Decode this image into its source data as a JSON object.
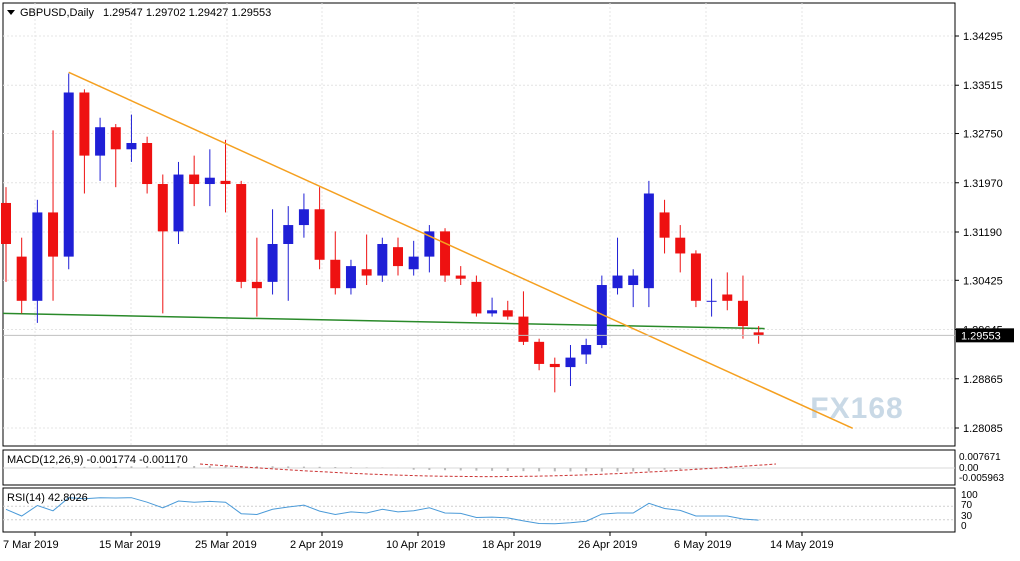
{
  "header": {
    "symbol": "GBPUSD,Daily",
    "ohlc": "1.29547 1.29702 1.29427 1.29553"
  },
  "watermark": "FX168",
  "colors": {
    "bull": "#1f1fd6",
    "bear": "#ee1111",
    "ma": "#2a8a2a",
    "trendline": "#f5a020",
    "grid": "#e4e4e4",
    "macd_signal": "#cc3333",
    "rsi": "#4a9ad8",
    "price_tag_bg": "#000000"
  },
  "main_panel": {
    "price_labels": [
      "1.34295",
      "1.33515",
      "1.32750",
      "1.31970",
      "1.31190",
      "1.30425",
      "1.29645",
      "1.28865",
      "1.28085"
    ],
    "price_values": [
      1.34295,
      1.33515,
      1.3275,
      1.3197,
      1.3119,
      1.30425,
      1.29645,
      1.28865,
      1.28085
    ],
    "current_price_label": "1.29553",
    "current_price": 1.29553
  },
  "macd_panel": {
    "label": "MACD(12,26,9) -0.001774 -0.001170",
    "scale_labels": [
      "0.007671",
      "0.00",
      "-0.005963"
    ]
  },
  "rsi_panel": {
    "label": "RSI(14) 42.8026",
    "scale_labels": [
      "100",
      "70",
      "30",
      "0"
    ]
  },
  "time_axis": {
    "labels": [
      "7 Mar 2019",
      "15 Mar 2019",
      "25 Mar 2019",
      "2 Apr 2019",
      "10 Apr 2019",
      "18 Apr 2019",
      "26 Apr 2019",
      "6 May 2019",
      "14 May 2019"
    ]
  },
  "chart_data": {
    "type": "candlestick",
    "symbol": "GBPUSD",
    "timeframe": "Daily",
    "candles": [
      {
        "o": 1.3165,
        "h": 1.319,
        "l": 1.304,
        "c": 1.31
      },
      {
        "o": 1.308,
        "h": 1.311,
        "l": 1.299,
        "c": 1.301
      },
      {
        "o": 1.301,
        "h": 1.317,
        "l": 1.2975,
        "c": 1.315
      },
      {
        "o": 1.315,
        "h": 1.328,
        "l": 1.301,
        "c": 1.308
      },
      {
        "o": 1.308,
        "h": 1.337,
        "l": 1.306,
        "c": 1.334
      },
      {
        "o": 1.334,
        "h": 1.3345,
        "l": 1.318,
        "c": 1.324
      },
      {
        "o": 1.324,
        "h": 1.33,
        "l": 1.32,
        "c": 1.3285
      },
      {
        "o": 1.3285,
        "h": 1.329,
        "l": 1.319,
        "c": 1.325
      },
      {
        "o": 1.325,
        "h": 1.3305,
        "l": 1.323,
        "c": 1.326
      },
      {
        "o": 1.326,
        "h": 1.327,
        "l": 1.318,
        "c": 1.3195
      },
      {
        "o": 1.3195,
        "h": 1.321,
        "l": 1.299,
        "c": 1.312
      },
      {
        "o": 1.312,
        "h": 1.323,
        "l": 1.31,
        "c": 1.321
      },
      {
        "o": 1.321,
        "h": 1.324,
        "l": 1.316,
        "c": 1.3195
      },
      {
        "o": 1.3195,
        "h": 1.325,
        "l": 1.316,
        "c": 1.3205
      },
      {
        "o": 1.32,
        "h": 1.3265,
        "l": 1.315,
        "c": 1.3195
      },
      {
        "o": 1.3195,
        "h": 1.32,
        "l": 1.303,
        "c": 1.304
      },
      {
        "o": 1.304,
        "h": 1.311,
        "l": 1.2985,
        "c": 1.303
      },
      {
        "o": 1.304,
        "h": 1.3155,
        "l": 1.302,
        "c": 1.31
      },
      {
        "o": 1.31,
        "h": 1.316,
        "l": 1.301,
        "c": 1.313
      },
      {
        "o": 1.313,
        "h": 1.318,
        "l": 1.311,
        "c": 1.3155
      },
      {
        "o": 1.3155,
        "h": 1.319,
        "l": 1.306,
        "c": 1.3075
      },
      {
        "o": 1.3075,
        "h": 1.312,
        "l": 1.302,
        "c": 1.303
      },
      {
        "o": 1.303,
        "h": 1.3075,
        "l": 1.302,
        "c": 1.3065
      },
      {
        "o": 1.306,
        "h": 1.3115,
        "l": 1.3035,
        "c": 1.305
      },
      {
        "o": 1.305,
        "h": 1.311,
        "l": 1.304,
        "c": 1.31
      },
      {
        "o": 1.3095,
        "h": 1.311,
        "l": 1.305,
        "c": 1.3065
      },
      {
        "o": 1.306,
        "h": 1.3105,
        "l": 1.305,
        "c": 1.308
      },
      {
        "o": 1.308,
        "h": 1.313,
        "l": 1.3055,
        "c": 1.312
      },
      {
        "o": 1.312,
        "h": 1.3125,
        "l": 1.304,
        "c": 1.305
      },
      {
        "o": 1.305,
        "h": 1.3065,
        "l": 1.3035,
        "c": 1.3045
      },
      {
        "o": 1.304,
        "h": 1.305,
        "l": 1.2985,
        "c": 1.299
      },
      {
        "o": 1.299,
        "h": 1.3015,
        "l": 1.2985,
        "c": 1.2995
      },
      {
        "o": 1.2995,
        "h": 1.301,
        "l": 1.298,
        "c": 1.2985
      },
      {
        "o": 1.2985,
        "h": 1.3025,
        "l": 1.294,
        "c": 1.2945
      },
      {
        "o": 1.2945,
        "h": 1.295,
        "l": 1.29,
        "c": 1.291
      },
      {
        "o": 1.291,
        "h": 1.292,
        "l": 1.2865,
        "c": 1.2905
      },
      {
        "o": 1.2905,
        "h": 1.294,
        "l": 1.2875,
        "c": 1.292
      },
      {
        "o": 1.2925,
        "h": 1.295,
        "l": 1.291,
        "c": 1.294
      },
      {
        "o": 1.294,
        "h": 1.305,
        "l": 1.2935,
        "c": 1.3035
      },
      {
        "o": 1.303,
        "h": 1.311,
        "l": 1.302,
        "c": 1.305
      },
      {
        "o": 1.3035,
        "h": 1.306,
        "l": 1.3,
        "c": 1.305
      },
      {
        "o": 1.303,
        "h": 1.32,
        "l": 1.3,
        "c": 1.318
      },
      {
        "o": 1.315,
        "h": 1.317,
        "l": 1.3085,
        "c": 1.311
      },
      {
        "o": 1.311,
        "h": 1.313,
        "l": 1.3055,
        "c": 1.3085
      },
      {
        "o": 1.3085,
        "h": 1.309,
        "l": 1.3,
        "c": 1.301
      },
      {
        "o": 1.301,
        "h": 1.3045,
        "l": 1.2985,
        "c": 1.301
      },
      {
        "o": 1.302,
        "h": 1.3055,
        "l": 1.2995,
        "c": 1.301
      },
      {
        "o": 1.301,
        "h": 1.305,
        "l": 1.295,
        "c": 1.297
      },
      {
        "o": 1.296,
        "h": 1.297,
        "l": 1.2942,
        "c": 1.2955
      }
    ],
    "moving_average": {
      "start": 1.299,
      "end": 1.2966
    },
    "trendline": {
      "from": {
        "bar": 4,
        "price": 1.3372
      },
      "to": {
        "bar": 54,
        "price": 1.2808
      }
    },
    "rsi_current": 42.8026,
    "macd": {
      "main": -0.001774,
      "signal": -0.00117
    }
  }
}
